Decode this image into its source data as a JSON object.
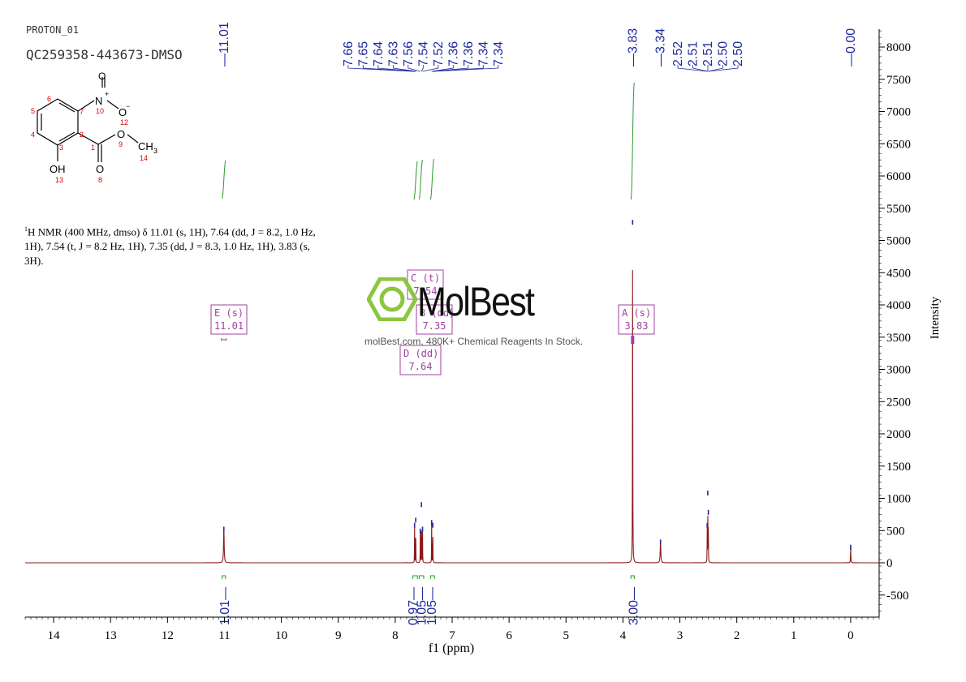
{
  "header": {
    "experiment": "PROTON_01",
    "sample": "QC259358-443673-DMSO"
  },
  "description": {
    "nucleus_sup": "1",
    "text_line1": "H NMR (400 MHz, dmso) δ 11.01 (s, 1H), 7.64 (dd, J = 8.2, 1.0 Hz,",
    "text_line2": "1H), 7.54 (t, J = 8.2 Hz, 1H), 7.35 (dd, J = 8.3, 1.0 Hz, 1H), 3.83 (s,",
    "text_line3": "3H)."
  },
  "structure": {
    "atoms": [
      "O",
      "N",
      "+",
      "10",
      "O",
      "−",
      "12",
      "7",
      "6",
      "5",
      "4",
      "3",
      "2",
      "1",
      "O",
      "9",
      "CH",
      "3",
      "14",
      "OH",
      "13",
      "O",
      "8"
    ]
  },
  "watermark": {
    "logo_text": "MolBest",
    "subtitle": "molBest.com, 480K+ Chemical Reagents In Stock."
  },
  "chart_data": {
    "type": "line",
    "xlabel": "f1 (ppm)",
    "ylabel": "Intensity",
    "xlim": [
      14.5,
      -0.5
    ],
    "ylim": [
      -800,
      8300
    ],
    "x_ticks": [
      14,
      13,
      12,
      11,
      10,
      9,
      8,
      7,
      6,
      5,
      4,
      3,
      2,
      1,
      0
    ],
    "y_ticks": [
      8000,
      7500,
      7000,
      6500,
      6000,
      5500,
      5000,
      4500,
      4000,
      3500,
      3000,
      2500,
      2000,
      1500,
      1000,
      500,
      0,
      -500
    ],
    "series": [
      {
        "peaks": [
          {
            "ppm": 11.01,
            "height": 560,
            "width": 0.006
          },
          {
            "ppm": 7.66,
            "height": 620,
            "width": 0.0018
          },
          {
            "ppm": 7.64,
            "height": 700,
            "width": 0.0018
          },
          {
            "ppm": 7.56,
            "height": 530,
            "width": 0.0018
          },
          {
            "ppm": 7.54,
            "height": 940,
            "width": 0.0018
          },
          {
            "ppm": 7.52,
            "height": 560,
            "width": 0.0018
          },
          {
            "ppm": 7.36,
            "height": 660,
            "width": 0.0018
          },
          {
            "ppm": 7.34,
            "height": 620,
            "width": 0.0018
          },
          {
            "ppm": 3.83,
            "height": 5320,
            "width": 0.0025
          },
          {
            "ppm": 3.34,
            "height": 360,
            "width": 0.006
          },
          {
            "ppm": 2.52,
            "height": 620,
            "width": 0.0018
          },
          {
            "ppm": 2.51,
            "height": 1120,
            "width": 0.0018
          },
          {
            "ppm": 2.5,
            "height": 820,
            "width": 0.0018
          },
          {
            "ppm": 0.0,
            "height": 280,
            "width": 0.003
          }
        ]
      }
    ],
    "peak_labels": [
      {
        "ppm": 11.01,
        "group": "single",
        "text": "11.01"
      },
      {
        "ppm": 7.66,
        "group": "arom",
        "text": "7.66"
      },
      {
        "ppm": 7.65,
        "group": "arom",
        "text": "7.65"
      },
      {
        "ppm": 7.64,
        "group": "arom",
        "text": "7.64"
      },
      {
        "ppm": 7.63,
        "group": "arom",
        "text": "7.63"
      },
      {
        "ppm": 7.56,
        "group": "arom",
        "text": "7.56"
      },
      {
        "ppm": 7.54,
        "group": "arom",
        "text": "7.54"
      },
      {
        "ppm": 7.52,
        "group": "arom",
        "text": "7.52"
      },
      {
        "ppm": 7.36,
        "group": "arom",
        "text": "7.36"
      },
      {
        "ppm": 7.36,
        "group": "arom",
        "text": "7.36"
      },
      {
        "ppm": 7.34,
        "group": "arom",
        "text": "7.34"
      },
      {
        "ppm": 7.34,
        "group": "arom",
        "text": "7.34"
      },
      {
        "ppm": 3.83,
        "group": "single",
        "text": "3.83"
      },
      {
        "ppm": 3.34,
        "group": "single",
        "text": "3.34"
      },
      {
        "ppm": 2.52,
        "group": "dmso",
        "text": "2.52"
      },
      {
        "ppm": 2.51,
        "group": "dmso",
        "text": "2.51"
      },
      {
        "ppm": 2.51,
        "group": "dmso",
        "text": "2.51"
      },
      {
        "ppm": 2.5,
        "group": "dmso",
        "text": "2.50"
      },
      {
        "ppm": 2.5,
        "group": "dmso",
        "text": "2.50"
      },
      {
        "ppm": 0.0,
        "group": "single",
        "text": "0.00"
      }
    ],
    "integrals": [
      {
        "from": 11.04,
        "to": 10.98,
        "value": "1.01"
      },
      {
        "from": 7.69,
        "to": 7.61,
        "value": "0.97"
      },
      {
        "from": 7.58,
        "to": 7.5,
        "value": "1.05"
      },
      {
        "from": 7.38,
        "to": 7.31,
        "value": "1.05"
      },
      {
        "from": 3.86,
        "to": 3.8,
        "value": "3.00"
      }
    ],
    "multiplets": [
      {
        "letter": "E",
        "type": "s",
        "ppm": "11.01"
      },
      {
        "letter": "C",
        "type": "t",
        "ppm": "7.54"
      },
      {
        "letter": "B",
        "type": "dd",
        "ppm": "7.35"
      },
      {
        "letter": "D",
        "type": "dd",
        "ppm": "7.64"
      },
      {
        "letter": "A",
        "type": "s",
        "ppm": "3.83"
      }
    ],
    "colors": {
      "spectrum": "#8b1a1a",
      "label_text": "#1f2aa0",
      "integral": "#2a9a2a",
      "multiplet_box": "#a040a0",
      "peak_marker": "#1f2aa0"
    }
  }
}
